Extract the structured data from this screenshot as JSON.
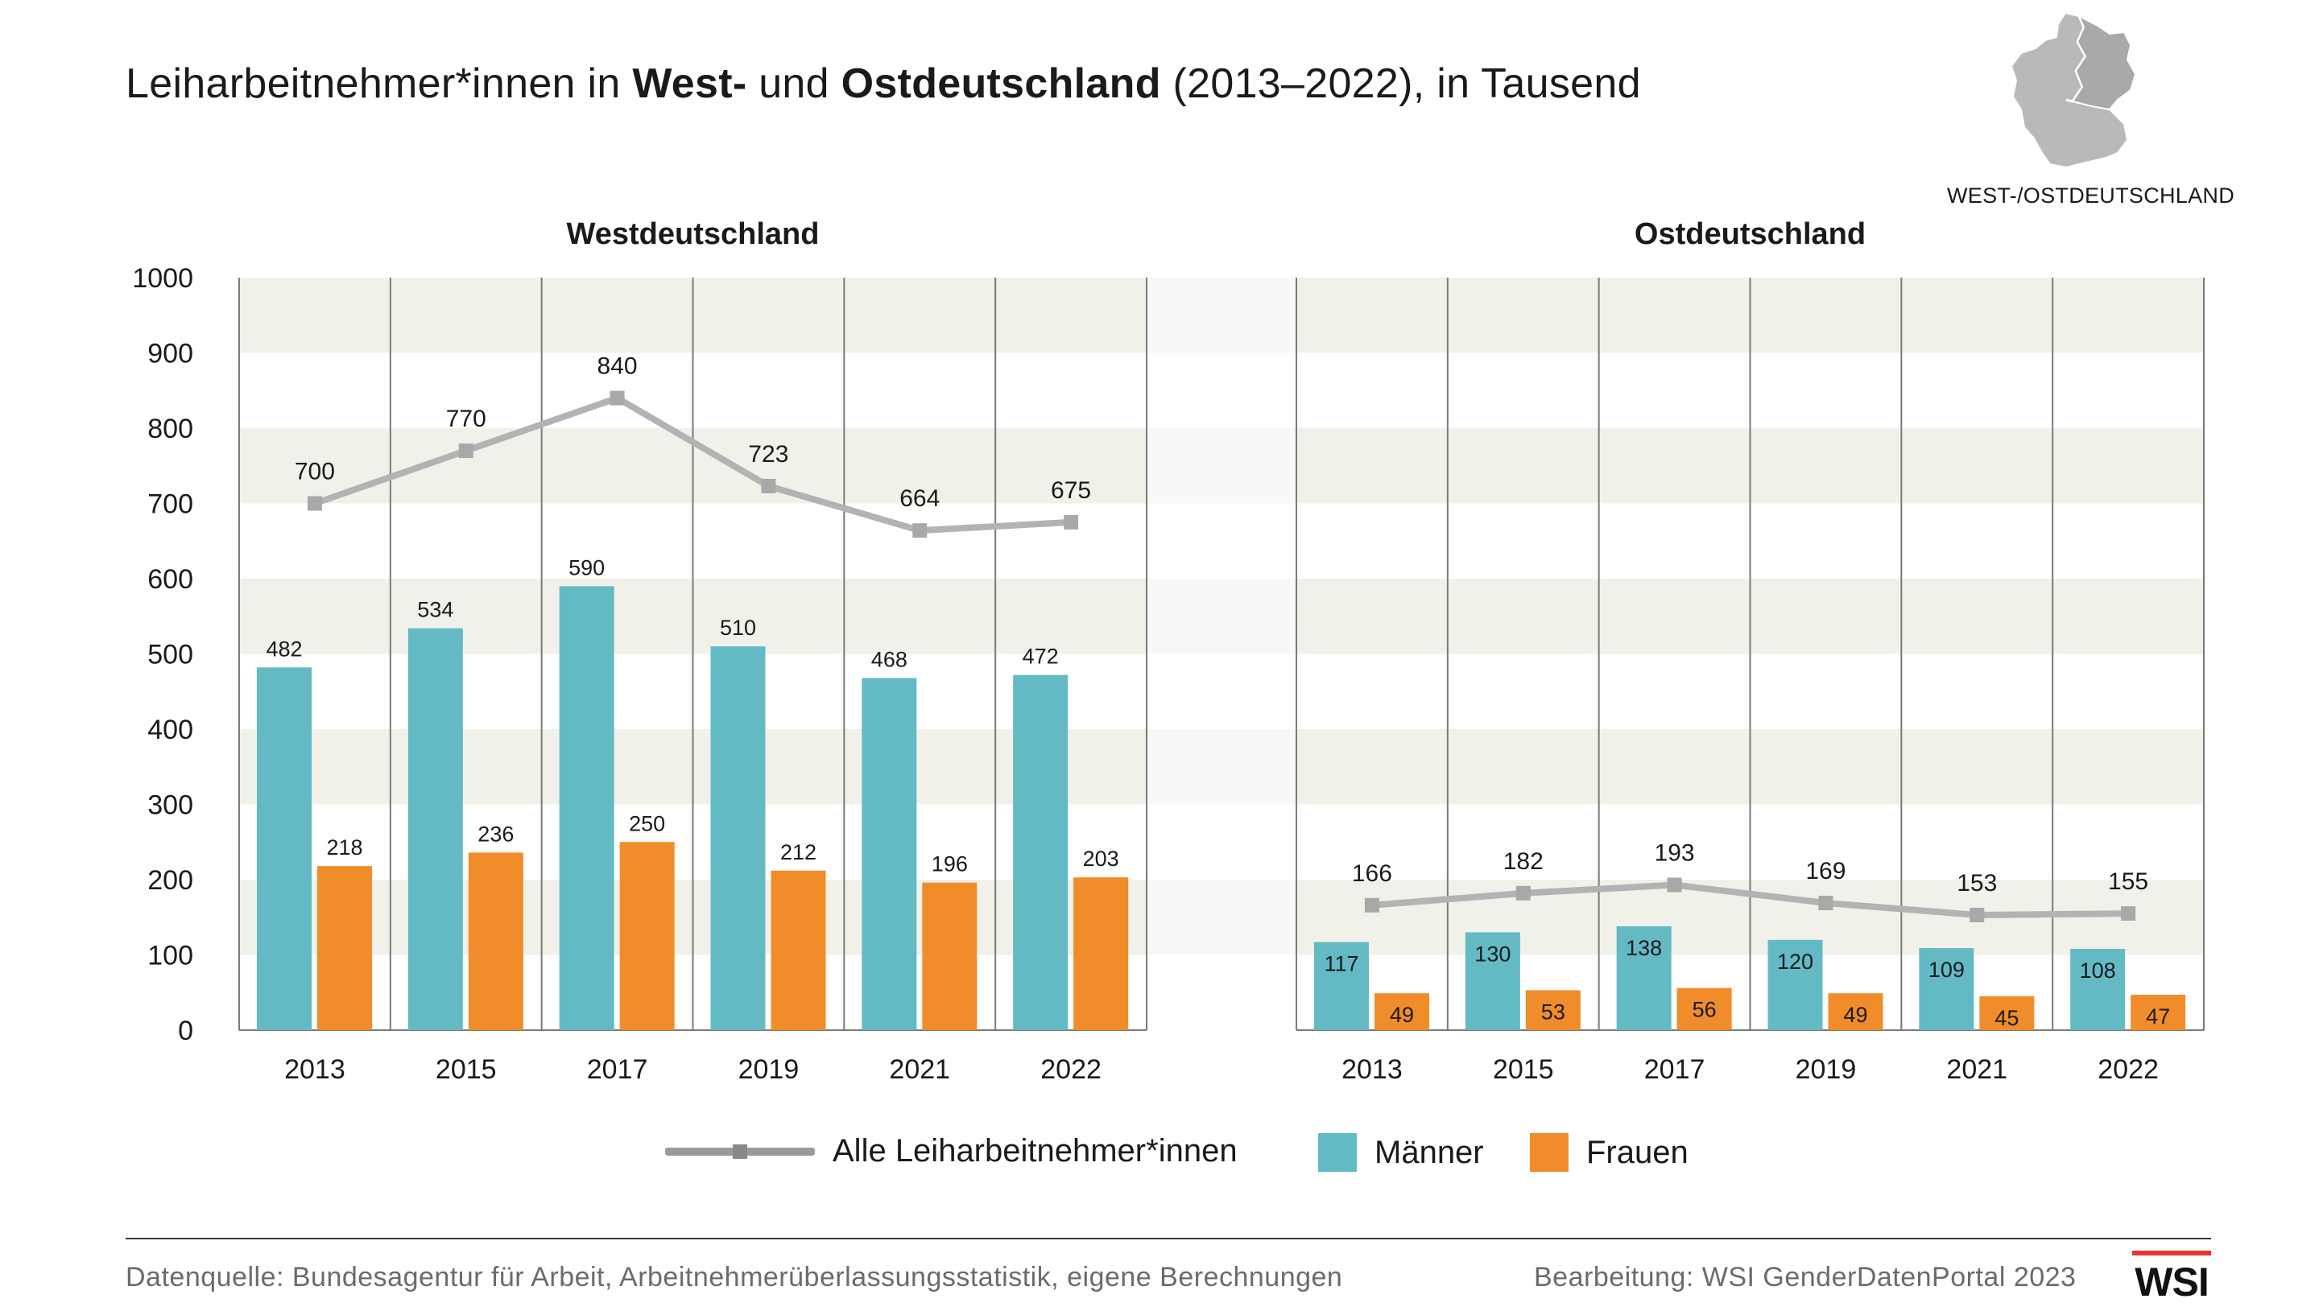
{
  "title": {
    "part1": "Leiharbeitnehmer*innen in ",
    "bold1": "West-",
    "part2": " und ",
    "bold2": "Ostdeutschland",
    "part3": " (2013–2022), in Tausend"
  },
  "map_label": "WEST-/OSTDEUTSCHLAND",
  "colors": {
    "maenner": "#63bac4",
    "frauen": "#f18c2a",
    "total_line": "#b3b3b3",
    "band": "#f1f1ea",
    "grid": "#7a7a7a"
  },
  "chart_data": {
    "type": "bar",
    "ylim": [
      0,
      1000
    ],
    "yticks": [
      "1000",
      "900",
      "800",
      "700",
      "600",
      "500",
      "400",
      "300",
      "200",
      "100",
      "0"
    ],
    "panels": [
      {
        "title": "Westdeutschland",
        "categories": [
          "2013",
          "2015",
          "2017",
          "2019",
          "2021",
          "2022"
        ],
        "series": [
          {
            "name": "Männer",
            "values": [
              482,
              534,
              590,
              510,
              468,
              472
            ]
          },
          {
            "name": "Frauen",
            "values": [
              218,
              236,
              250,
              212,
              196,
              203
            ]
          },
          {
            "name": "Alle Leiharbeitnehmer*innen",
            "values": [
              700,
              770,
              840,
              723,
              664,
              675
            ]
          }
        ]
      },
      {
        "title": "Ostdeutschland",
        "categories": [
          "2013",
          "2015",
          "2017",
          "2019",
          "2021",
          "2022"
        ],
        "series": [
          {
            "name": "Männer",
            "values": [
              117,
              130,
              138,
              120,
              109,
              108
            ]
          },
          {
            "name": "Frauen",
            "values": [
              49,
              53,
              56,
              49,
              45,
              47
            ]
          },
          {
            "name": "Alle Leiharbeitnehmer*innen",
            "values": [
              166,
              182,
              193,
              169,
              153,
              155
            ]
          }
        ]
      }
    ],
    "legend": {
      "total": "Alle Leiharbeitnehmer*innen",
      "maenner": "Männer",
      "frauen": "Frauen"
    }
  },
  "footer": {
    "source": "Datenquelle:  Bundesagentur für Arbeit, Arbeitnehmerüberlassungsstatistik, eigene Berechnungen",
    "credit": "Bearbeitung: WSI GenderDatenPortal 2023",
    "logo": "WSI"
  }
}
